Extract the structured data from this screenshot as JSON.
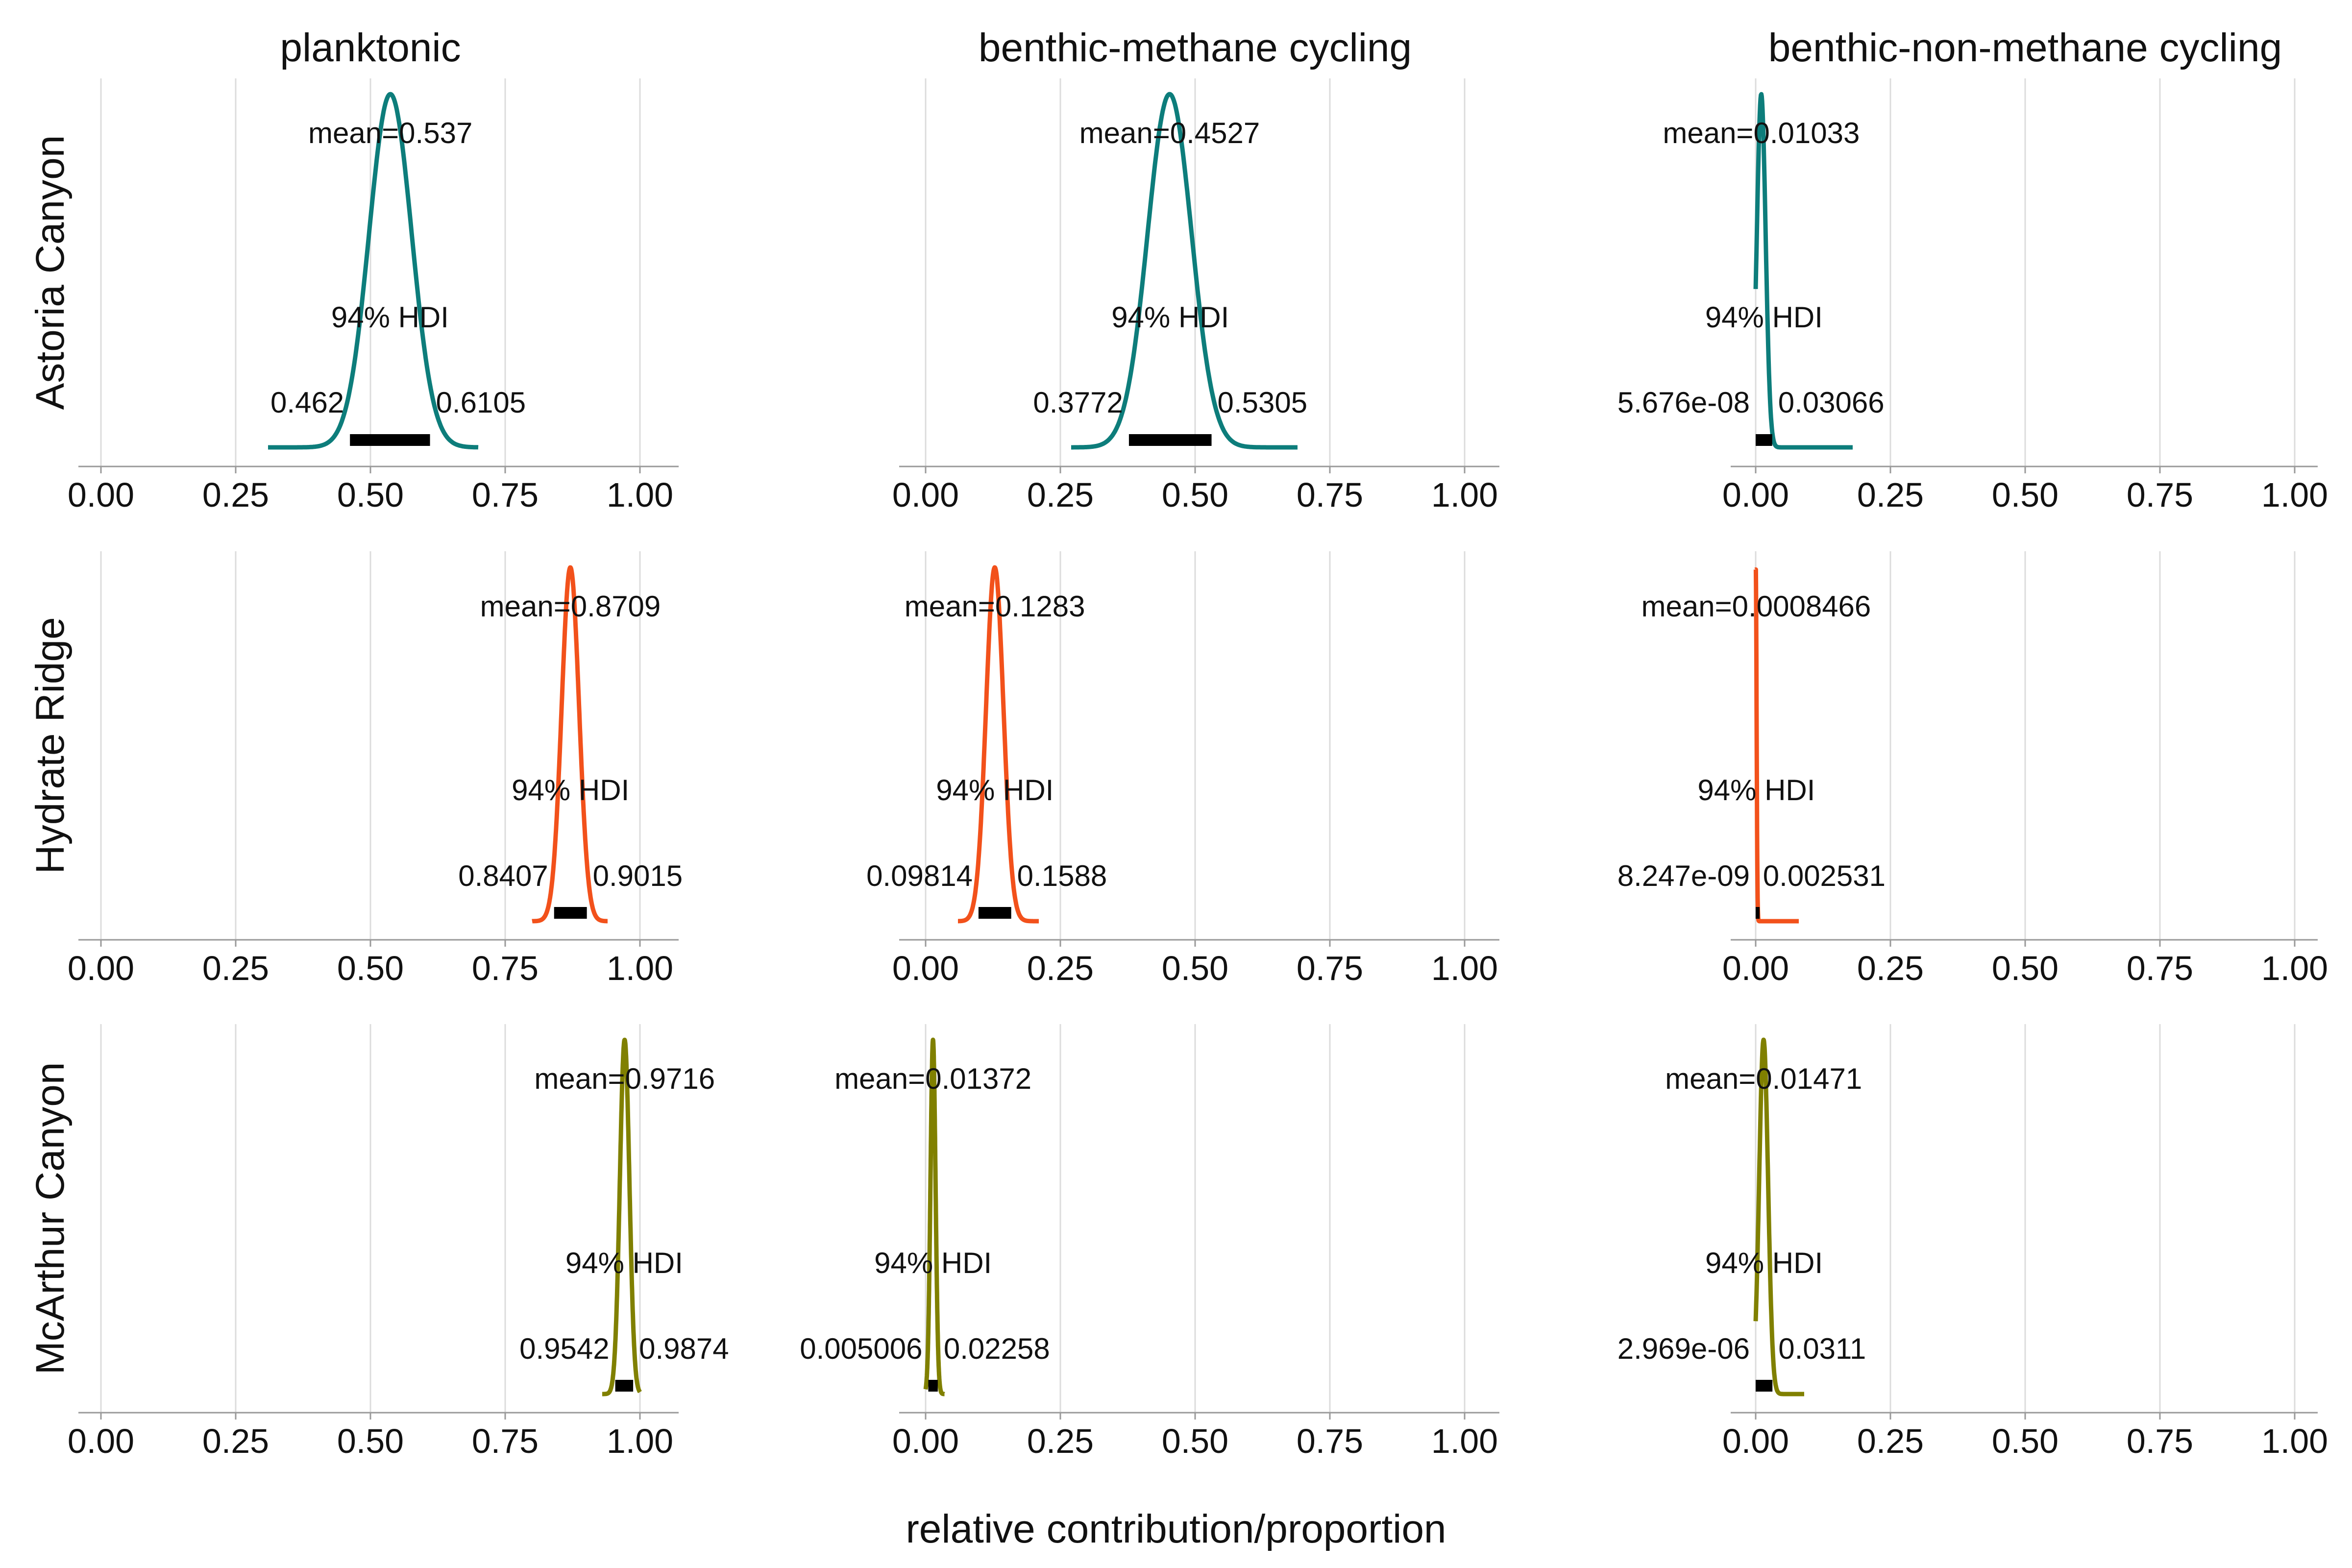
{
  "figure": {
    "xlabel": "relative contribution/proportion",
    "columns": [
      "planktonic",
      "benthic-methane cycling",
      "benthic-non-methane cycling"
    ],
    "rows": [
      "Astoria Canyon",
      "Hydrate Ridge",
      "McArthur Canyon"
    ],
    "row_colors": [
      "#0d7d7b",
      "#f2511b",
      "#808000"
    ],
    "hdi_color": "#000000",
    "grid_color": "#dcdcdc",
    "axis_color": "#9a9a9a",
    "hdi_label": "94% HDI",
    "mean_prefix": "mean="
  },
  "chart_data": {
    "type": "line",
    "subtype": "posterior density (KDE) facet grid",
    "xlabel": "relative contribution/proportion",
    "xlim": [
      0.0,
      1.0
    ],
    "xticks": [
      "0.00",
      "0.25",
      "0.50",
      "0.75",
      "1.00"
    ],
    "grid": "vertical",
    "panels": [
      {
        "row": "Astoria Canyon",
        "column": "planktonic",
        "mean": "0.537",
        "hdi_low": "0.462",
        "hdi_high": "0.6105",
        "range": [
          0.31,
          0.7
        ]
      },
      {
        "row": "Astoria Canyon",
        "column": "benthic-methane cycling",
        "mean": "0.4527",
        "hdi_low": "0.3772",
        "hdi_high": "0.5305",
        "range": [
          0.27,
          0.69
        ]
      },
      {
        "row": "Astoria Canyon",
        "column": "benthic-non-methane cycling",
        "mean": "0.01033",
        "hdi_low": "5.676e-08",
        "hdi_high": "0.03066",
        "range": [
          0.0,
          0.18
        ]
      },
      {
        "row": "Hydrate Ridge",
        "column": "planktonic",
        "mean": "0.8709",
        "hdi_low": "0.8407",
        "hdi_high": "0.9015",
        "range": [
          0.8,
          0.94
        ]
      },
      {
        "row": "Hydrate Ridge",
        "column": "benthic-methane cycling",
        "mean": "0.1283",
        "hdi_low": "0.09814",
        "hdi_high": "0.1588",
        "range": [
          0.06,
          0.21
        ]
      },
      {
        "row": "Hydrate Ridge",
        "column": "benthic-non-methane cycling",
        "mean": "0.0008466",
        "hdi_low": "8.247e-09",
        "hdi_high": "0.002531",
        "range": [
          0.0,
          0.08
        ]
      },
      {
        "row": "McArthur Canyon",
        "column": "planktonic",
        "mean": "0.9716",
        "hdi_low": "0.9542",
        "hdi_high": "0.9874",
        "range": [
          0.93,
          1.0
        ]
      },
      {
        "row": "McArthur Canyon",
        "column": "benthic-methane cycling",
        "mean": "0.01372",
        "hdi_low": "0.005006",
        "hdi_high": "0.02258",
        "range": [
          0.0,
          0.035
        ]
      },
      {
        "row": "McArthur Canyon",
        "column": "benthic-non-methane cycling",
        "mean": "0.01471",
        "hdi_low": "2.969e-06",
        "hdi_high": "0.0311",
        "range": [
          0.0,
          0.09
        ]
      }
    ]
  }
}
